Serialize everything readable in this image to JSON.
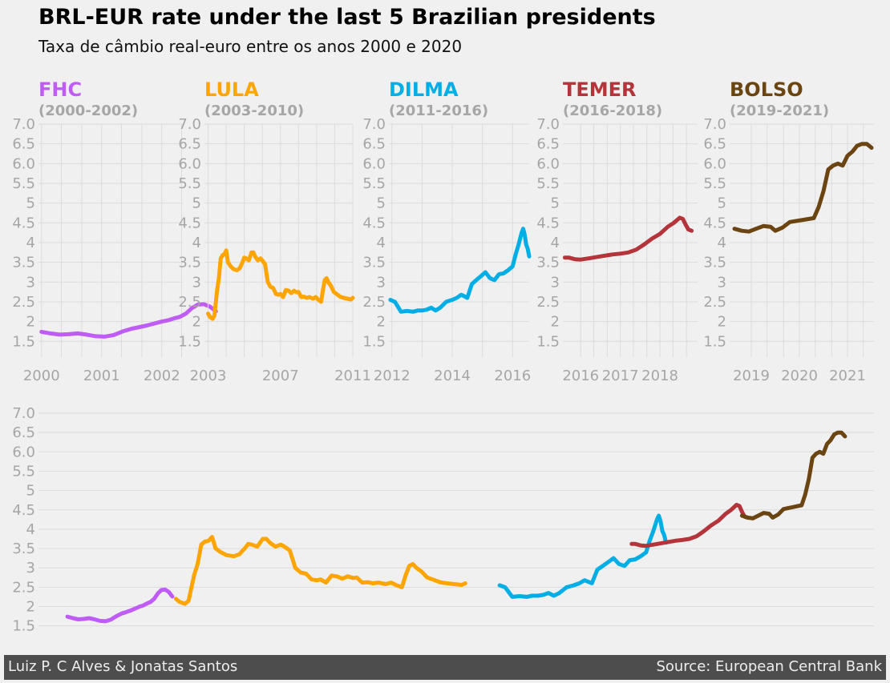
{
  "header": {
    "title": "BRL-EUR rate under the last 5 Brazilian presidents",
    "subtitle": "Taxa de câmbio real-euro entre os anos 2000 e 2020"
  },
  "footer": {
    "left": "Luiz P. C Alves & Jonatas Santos",
    "right": "Source: European Central Bank"
  },
  "colors": {
    "background": "#f0f0f0",
    "grid": "#dcdcdc",
    "tick": "#a6a6a6",
    "footer_bg": "#4d4d4d"
  },
  "chart_data": {
    "type": "line",
    "y_ticks": [
      "1.5",
      "2",
      "2.5",
      "3",
      "3.5",
      "4",
      "4.5",
      "5",
      "5.5",
      "6.0",
      "6.5",
      "7.0"
    ],
    "y_tick_values": [
      1.5,
      2,
      2.5,
      3,
      3.5,
      4,
      4.5,
      5,
      5.5,
      6.0,
      6.5,
      7.0
    ],
    "ylim": [
      1.1,
      7.0
    ],
    "grid": true,
    "panels": [
      {
        "name": "FHC",
        "period": "(2000-2002)",
        "color": "#c05cf6",
        "xlim": [
          1999.95,
          2002.35
        ],
        "x_ticks": [
          2000,
          2001,
          2002
        ],
        "x_tick_labels": [
          "2000",
          "2001",
          "2002"
        ],
        "minor_ticks": [
          2000.33,
          2000.67,
          2001.33,
          2001.67,
          2002.33
        ],
        "series": [
          [
            2000.0,
            1.74
          ],
          [
            2000.15,
            1.7
          ],
          [
            2000.3,
            1.67
          ],
          [
            2000.45,
            1.68
          ],
          [
            2000.6,
            1.7
          ],
          [
            2000.75,
            1.67
          ],
          [
            2000.9,
            1.63
          ],
          [
            2001.05,
            1.62
          ],
          [
            2001.2,
            1.66
          ],
          [
            2001.35,
            1.75
          ],
          [
            2001.5,
            1.82
          ],
          [
            2001.6,
            1.85
          ],
          [
            2001.75,
            1.9
          ],
          [
            2001.9,
            1.96
          ],
          [
            2002.0,
            2.0
          ],
          [
            2002.1,
            2.03
          ],
          [
            2002.2,
            2.08
          ],
          [
            2002.3,
            2.12
          ],
          [
            2002.4,
            2.2
          ],
          [
            2002.5,
            2.34
          ],
          [
            2002.6,
            2.43
          ],
          [
            2002.7,
            2.44
          ],
          [
            2002.8,
            2.38
          ],
          [
            2002.9,
            2.26
          ]
        ]
      },
      {
        "name": "LULA",
        "period": "(2003-2010)",
        "color": "#ffa500",
        "xlim": [
          2002.8,
          2011.0
        ],
        "x_ticks": [
          2003,
          2007,
          2011
        ],
        "x_tick_labels": [
          "2003",
          "2007",
          "2011"
        ],
        "minor_ticks": [
          2004,
          2005,
          2006,
          2008,
          2009,
          2010
        ],
        "series": [
          [
            2003.0,
            2.2
          ],
          [
            2003.1,
            2.12
          ],
          [
            2003.25,
            2.07
          ],
          [
            2003.35,
            2.15
          ],
          [
            2003.5,
            2.8
          ],
          [
            2003.6,
            3.1
          ],
          [
            2003.7,
            3.6
          ],
          [
            2003.8,
            3.68
          ],
          [
            2003.9,
            3.7
          ],
          [
            2004.0,
            3.8
          ],
          [
            2004.1,
            3.5
          ],
          [
            2004.25,
            3.4
          ],
          [
            2004.4,
            3.33
          ],
          [
            2004.6,
            3.3
          ],
          [
            2004.75,
            3.35
          ],
          [
            2004.9,
            3.5
          ],
          [
            2005.0,
            3.62
          ],
          [
            2005.1,
            3.6
          ],
          [
            2005.25,
            3.55
          ],
          [
            2005.4,
            3.75
          ],
          [
            2005.5,
            3.75
          ],
          [
            2005.6,
            3.65
          ],
          [
            2005.75,
            3.55
          ],
          [
            2005.9,
            3.6
          ],
          [
            2006.0,
            3.55
          ],
          [
            2006.15,
            3.45
          ],
          [
            2006.3,
            3.0
          ],
          [
            2006.45,
            2.88
          ],
          [
            2006.6,
            2.85
          ],
          [
            2006.75,
            2.7
          ],
          [
            2006.9,
            2.68
          ],
          [
            2007.0,
            2.7
          ],
          [
            2007.15,
            2.62
          ],
          [
            2007.3,
            2.8
          ],
          [
            2007.45,
            2.78
          ],
          [
            2007.6,
            2.72
          ],
          [
            2007.75,
            2.78
          ],
          [
            2007.9,
            2.74
          ],
          [
            2008.0,
            2.75
          ],
          [
            2008.15,
            2.62
          ],
          [
            2008.3,
            2.63
          ],
          [
            2008.45,
            2.6
          ],
          [
            2008.6,
            2.62
          ],
          [
            2008.8,
            2.58
          ],
          [
            2008.95,
            2.62
          ],
          [
            2009.1,
            2.55
          ],
          [
            2009.25,
            2.5
          ],
          [
            2009.35,
            2.8
          ],
          [
            2009.45,
            3.05
          ],
          [
            2009.55,
            3.1
          ],
          [
            2009.65,
            3.0
          ],
          [
            2009.8,
            2.9
          ],
          [
            2009.95,
            2.75
          ],
          [
            2010.1,
            2.7
          ],
          [
            2010.3,
            2.63
          ],
          [
            2010.5,
            2.6
          ],
          [
            2010.7,
            2.58
          ],
          [
            2010.9,
            2.56
          ],
          [
            2011.0,
            2.6
          ]
        ]
      },
      {
        "name": "DILMA",
        "period": "(2011-2016)",
        "color": "#00aee6",
        "xlim": [
          2011.9,
          2016.55
        ],
        "x_ticks": [
          2012,
          2014,
          2016
        ],
        "x_tick_labels": [
          "2012",
          "2014",
          "2016"
        ],
        "minor_ticks": [
          2013,
          2015
        ],
        "series": [
          [
            2011.95,
            2.55
          ],
          [
            2012.1,
            2.5
          ],
          [
            2012.3,
            2.25
          ],
          [
            2012.5,
            2.27
          ],
          [
            2012.7,
            2.25
          ],
          [
            2012.85,
            2.28
          ],
          [
            2013.0,
            2.28
          ],
          [
            2013.15,
            2.3
          ],
          [
            2013.3,
            2.35
          ],
          [
            2013.45,
            2.28
          ],
          [
            2013.6,
            2.35
          ],
          [
            2013.8,
            2.5
          ],
          [
            2014.0,
            2.55
          ],
          [
            2014.15,
            2.6
          ],
          [
            2014.3,
            2.68
          ],
          [
            2014.4,
            2.64
          ],
          [
            2014.5,
            2.6
          ],
          [
            2014.65,
            2.95
          ],
          [
            2014.8,
            3.05
          ],
          [
            2014.95,
            3.15
          ],
          [
            2015.1,
            3.25
          ],
          [
            2015.25,
            3.1
          ],
          [
            2015.4,
            3.05
          ],
          [
            2015.55,
            3.2
          ],
          [
            2015.7,
            3.22
          ],
          [
            2015.85,
            3.3
          ],
          [
            2016.0,
            3.4
          ],
          [
            2016.1,
            3.7
          ],
          [
            2016.2,
            3.95
          ],
          [
            2016.3,
            4.25
          ],
          [
            2016.35,
            4.35
          ],
          [
            2016.4,
            4.2
          ],
          [
            2016.45,
            3.95
          ],
          [
            2016.5,
            3.85
          ],
          [
            2016.55,
            3.65
          ]
        ]
      },
      {
        "name": "TEMER",
        "period": "(2016-2018)",
        "color": "#b3343a",
        "xlim": [
          2015.55,
          2018.95
        ],
        "x_ticks": [
          2016,
          2017,
          2018
        ],
        "x_tick_labels": [
          "2016",
          "2017",
          "2018"
        ],
        "minor_ticks": [
          2016.33,
          2016.67,
          2017.33,
          2017.67,
          2018.33,
          2018.67
        ],
        "series": [
          [
            2015.6,
            3.62
          ],
          [
            2015.7,
            3.62
          ],
          [
            2015.85,
            3.58
          ],
          [
            2016.0,
            3.57
          ],
          [
            2016.2,
            3.6
          ],
          [
            2016.5,
            3.65
          ],
          [
            2016.8,
            3.7
          ],
          [
            2017.0,
            3.72
          ],
          [
            2017.2,
            3.75
          ],
          [
            2017.4,
            3.82
          ],
          [
            2017.6,
            3.95
          ],
          [
            2017.8,
            4.1
          ],
          [
            2018.0,
            4.22
          ],
          [
            2018.2,
            4.4
          ],
          [
            2018.35,
            4.5
          ],
          [
            2018.5,
            4.63
          ],
          [
            2018.58,
            4.6
          ],
          [
            2018.65,
            4.45
          ],
          [
            2018.72,
            4.33
          ],
          [
            2018.8,
            4.3
          ]
        ]
      },
      {
        "name": "BOLSO",
        "period": "(2019-2021)",
        "color": "#6b4511",
        "xlim": [
          2018.55,
          2021.55
        ],
        "x_ticks": [
          2019,
          2020,
          2021
        ],
        "x_tick_labels": [
          "2019",
          "2020",
          "2021"
        ],
        "minor_ticks": [
          2019.33,
          2019.67,
          2020.33,
          2020.67,
          2021.33
        ],
        "series": [
          [
            2018.65,
            4.35
          ],
          [
            2018.8,
            4.3
          ],
          [
            2018.95,
            4.28
          ],
          [
            2019.1,
            4.35
          ],
          [
            2019.25,
            4.42
          ],
          [
            2019.4,
            4.4
          ],
          [
            2019.5,
            4.3
          ],
          [
            2019.65,
            4.38
          ],
          [
            2019.8,
            4.52
          ],
          [
            2019.95,
            4.55
          ],
          [
            2020.05,
            4.57
          ],
          [
            2020.2,
            4.6
          ],
          [
            2020.3,
            4.62
          ],
          [
            2020.4,
            4.9
          ],
          [
            2020.5,
            5.3
          ],
          [
            2020.6,
            5.85
          ],
          [
            2020.7,
            5.95
          ],
          [
            2020.8,
            6.0
          ],
          [
            2020.9,
            5.95
          ],
          [
            2021.0,
            6.2
          ],
          [
            2021.1,
            6.3
          ],
          [
            2021.2,
            6.45
          ],
          [
            2021.3,
            6.5
          ],
          [
            2021.4,
            6.5
          ],
          [
            2021.5,
            6.4
          ]
        ]
      }
    ],
    "combined": {
      "xlim": [
        1999.2,
        2022.3
      ]
    }
  }
}
